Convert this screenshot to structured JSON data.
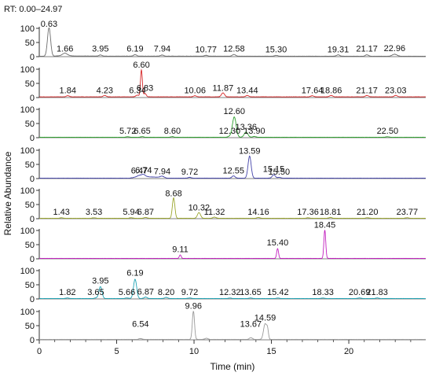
{
  "chart_data": {
    "type": "line",
    "title": "RT: 0.00–24.97",
    "xlabel": "Time (min)",
    "ylabel": "Relative Abundance",
    "xlim": [
      0,
      24.97
    ],
    "ylim": [
      0,
      100
    ],
    "x_ticks": [
      0,
      5,
      10,
      15,
      20
    ],
    "y_ticks": [
      0,
      50,
      100
    ],
    "grid": false,
    "legend": "none",
    "series": [
      {
        "color": "#6e6e6e",
        "baseline": [
          [
            0,
            1
          ],
          [
            1,
            1.5
          ],
          [
            1.6,
            4
          ],
          [
            2.2,
            2
          ],
          [
            4,
            1.5
          ],
          [
            24.97,
            1
          ]
        ],
        "peaks": [
          {
            "x": 0.63,
            "h": 100,
            "w": 0.1
          },
          {
            "x": 1.66,
            "h": 8,
            "w": 0.15
          },
          {
            "x": 3.95,
            "h": 4,
            "w": 0.1
          },
          {
            "x": 6.19,
            "h": 5,
            "w": 0.1
          },
          {
            "x": 7.94,
            "h": 4,
            "w": 0.1
          },
          {
            "x": 10.77,
            "h": 3,
            "w": 0.1
          },
          {
            "x": 12.58,
            "h": 6,
            "w": 0.1
          },
          {
            "x": 15.3,
            "h": 3,
            "w": 0.1
          },
          {
            "x": 19.31,
            "h": 5,
            "w": 0.1
          },
          {
            "x": 21.17,
            "h": 5,
            "w": 0.1
          },
          {
            "x": 22.96,
            "h": 7,
            "w": 0.15
          }
        ],
        "labels": [
          {
            "x": 0.63,
            "text": "0.63",
            "ly": 100
          },
          {
            "x": 1.66,
            "text": "1.66",
            "ly": 12
          },
          {
            "x": 3.95,
            "text": "3.95",
            "ly": 12
          },
          {
            "x": 6.19,
            "text": "6.19",
            "ly": 12
          },
          {
            "x": 7.94,
            "text": "7.94",
            "ly": 12
          },
          {
            "x": 10.77,
            "text": "10.77",
            "ly": 10
          },
          {
            "x": 12.58,
            "text": "12.58",
            "ly": 12
          },
          {
            "x": 15.3,
            "text": "15.30",
            "ly": 10
          },
          {
            "x": 19.31,
            "text": "19.31",
            "ly": 10
          },
          {
            "x": 21.17,
            "text": "21.17",
            "ly": 12
          },
          {
            "x": 22.96,
            "text": "22.96",
            "ly": 14
          }
        ]
      },
      {
        "color": "#d62728",
        "baseline": [
          [
            0,
            2
          ],
          [
            24.97,
            2
          ]
        ],
        "peaks": [
          {
            "x": 1.84,
            "h": 4,
            "w": 0.1
          },
          {
            "x": 4.23,
            "h": 5,
            "w": 0.1
          },
          {
            "x": 6.34,
            "h": 6,
            "w": 0.1
          },
          {
            "x": 6.6,
            "h": 95,
            "w": 0.06
          },
          {
            "x": 6.83,
            "h": 12,
            "w": 0.08
          },
          {
            "x": 10.06,
            "h": 4,
            "w": 0.1
          },
          {
            "x": 11.87,
            "h": 14,
            "w": 0.1
          },
          {
            "x": 13.44,
            "h": 5,
            "w": 0.1
          },
          {
            "x": 17.64,
            "h": 4,
            "w": 0.1
          },
          {
            "x": 18.86,
            "h": 5,
            "w": 0.1
          },
          {
            "x": 21.17,
            "h": 5,
            "w": 0.1
          },
          {
            "x": 23.03,
            "h": 5,
            "w": 0.1
          }
        ],
        "labels": [
          {
            "x": 1.84,
            "text": "1.84",
            "ly": 10
          },
          {
            "x": 4.23,
            "text": "4.23",
            "ly": 10
          },
          {
            "x": 6.34,
            "text": "6.34",
            "ly": 10
          },
          {
            "x": 6.6,
            "text": "6.60",
            "ly": 100
          },
          {
            "x": 6.83,
            "text": "6.83",
            "ly": 18
          },
          {
            "x": 10.06,
            "text": "10.06",
            "ly": 10
          },
          {
            "x": 11.87,
            "text": "11.87",
            "ly": 18
          },
          {
            "x": 13.44,
            "text": "13.44",
            "ly": 10
          },
          {
            "x": 17.64,
            "text": "17.64",
            "ly": 10
          },
          {
            "x": 18.86,
            "text": "18.86",
            "ly": 10
          },
          {
            "x": 21.17,
            "text": "21.17",
            "ly": 10
          },
          {
            "x": 23.03,
            "text": "23.03",
            "ly": 10
          }
        ]
      },
      {
        "color": "#2ca02c",
        "baseline": [
          [
            0,
            1
          ],
          [
            24.97,
            1
          ]
        ],
        "peaks": [
          {
            "x": 5.72,
            "h": 2,
            "w": 0.1
          },
          {
            "x": 6.65,
            "h": 2,
            "w": 0.1
          },
          {
            "x": 8.6,
            "h": 2,
            "w": 0.1
          },
          {
            "x": 12.3,
            "h": 3,
            "w": 0.1
          },
          {
            "x": 12.6,
            "h": 72,
            "w": 0.12
          },
          {
            "x": 13.36,
            "h": 18,
            "w": 0.12
          },
          {
            "x": 13.9,
            "h": 3,
            "w": 0.1
          },
          {
            "x": 22.5,
            "h": 2,
            "w": 0.1
          }
        ],
        "labels": [
          {
            "x": 5.72,
            "text": "5.72",
            "ly": 8
          },
          {
            "x": 6.65,
            "text": "6.65",
            "ly": 8
          },
          {
            "x": 8.6,
            "text": "8.60",
            "ly": 8
          },
          {
            "x": 12.3,
            "text": "12.30",
            "ly": 8
          },
          {
            "x": 12.6,
            "text": "12.60",
            "ly": 78
          },
          {
            "x": 13.36,
            "text": "13.36",
            "ly": 22
          },
          {
            "x": 13.9,
            "text": "13.90",
            "ly": 8
          },
          {
            "x": 22.5,
            "text": "22.50",
            "ly": 8
          }
        ]
      },
      {
        "color": "#4444aa",
        "baseline": [
          [
            0,
            1
          ],
          [
            5.8,
            1
          ],
          [
            6.2,
            4
          ],
          [
            7,
            6
          ],
          [
            7.8,
            4
          ],
          [
            8.3,
            1
          ],
          [
            24.97,
            1
          ]
        ],
        "peaks": [
          {
            "x": 6.47,
            "h": 6,
            "w": 0.15
          },
          {
            "x": 6.74,
            "h": 8,
            "w": 0.12
          },
          {
            "x": 7.94,
            "h": 5,
            "w": 0.12
          },
          {
            "x": 9.72,
            "h": 3,
            "w": 0.1
          },
          {
            "x": 12.55,
            "h": 8,
            "w": 0.1
          },
          {
            "x": 13.59,
            "h": 78,
            "w": 0.1
          },
          {
            "x": 15.15,
            "h": 12,
            "w": 0.1
          },
          {
            "x": 15.5,
            "h": 3,
            "w": 0.1
          }
        ],
        "labels": [
          {
            "x": 6.47,
            "text": "6.47",
            "ly": 12
          },
          {
            "x": 6.74,
            "text": "6.74",
            "ly": 14
          },
          {
            "x": 7.94,
            "text": "7.94",
            "ly": 10
          },
          {
            "x": 9.72,
            "text": "9.72",
            "ly": 8
          },
          {
            "x": 12.55,
            "text": "12.55",
            "ly": 12
          },
          {
            "x": 13.59,
            "text": "13.59",
            "ly": 82
          },
          {
            "x": 15.15,
            "text": "15.15",
            "ly": 18
          },
          {
            "x": 15.5,
            "text": "15.50",
            "ly": 8
          }
        ]
      },
      {
        "color": "#9aa52c",
        "baseline": [
          [
            0,
            1
          ],
          [
            24.97,
            1
          ]
        ],
        "peaks": [
          {
            "x": 1.43,
            "h": 2,
            "w": 0.1
          },
          {
            "x": 3.53,
            "h": 2,
            "w": 0.1
          },
          {
            "x": 5.94,
            "h": 2,
            "w": 0.1
          },
          {
            "x": 6.87,
            "h": 3,
            "w": 0.1
          },
          {
            "x": 8.68,
            "h": 72,
            "w": 0.08
          },
          {
            "x": 10.32,
            "h": 20,
            "w": 0.1
          },
          {
            "x": 11.32,
            "h": 4,
            "w": 0.1
          },
          {
            "x": 14.16,
            "h": 3,
            "w": 0.1
          },
          {
            "x": 17.36,
            "h": 2,
            "w": 0.1
          },
          {
            "x": 18.81,
            "h": 3,
            "w": 0.1
          },
          {
            "x": 21.2,
            "h": 2,
            "w": 0.1
          },
          {
            "x": 23.77,
            "h": 2,
            "w": 0.1
          }
        ],
        "labels": [
          {
            "x": 1.43,
            "text": "1.43",
            "ly": 8
          },
          {
            "x": 3.53,
            "text": "3.53",
            "ly": 8
          },
          {
            "x": 5.94,
            "text": "5.94",
            "ly": 8
          },
          {
            "x": 6.87,
            "text": "6.87",
            "ly": 8
          },
          {
            "x": 8.68,
            "text": "8.68",
            "ly": 74
          },
          {
            "x": 10.32,
            "text": "10.32",
            "ly": 24
          },
          {
            "x": 11.32,
            "text": "11.32",
            "ly": 8
          },
          {
            "x": 14.16,
            "text": "14.16",
            "ly": 8
          },
          {
            "x": 17.36,
            "text": "17.36",
            "ly": 8
          },
          {
            "x": 18.81,
            "text": "18.81",
            "ly": 8
          },
          {
            "x": 21.2,
            "text": "21.20",
            "ly": 8
          },
          {
            "x": 23.77,
            "text": "23.77",
            "ly": 8
          }
        ]
      },
      {
        "color": "#c21fbf",
        "baseline": [
          [
            0,
            1
          ],
          [
            24.97,
            1
          ]
        ],
        "peaks": [
          {
            "x": 9.11,
            "h": 12,
            "w": 0.06
          },
          {
            "x": 15.4,
            "h": 35,
            "w": 0.06
          },
          {
            "x": 18.45,
            "h": 100,
            "w": 0.06
          }
        ],
        "labels": [
          {
            "x": 9.11,
            "text": "9.11",
            "ly": 18
          },
          {
            "x": 15.4,
            "text": "15.40",
            "ly": 42
          },
          {
            "x": 18.45,
            "text": "18.45",
            "ly": 104
          }
        ]
      },
      {
        "color": "#1fa3b4",
        "baseline": [
          [
            0,
            1
          ],
          [
            24.97,
            1
          ]
        ],
        "peaks": [
          {
            "x": 1.82,
            "h": 2,
            "w": 0.1
          },
          {
            "x": 3.65,
            "h": 2,
            "w": 0.1
          },
          {
            "x": 3.95,
            "h": 42,
            "w": 0.1
          },
          {
            "x": 5.66,
            "h": 2,
            "w": 0.1
          },
          {
            "x": 6.19,
            "h": 68,
            "w": 0.1
          },
          {
            "x": 6.87,
            "h": 5,
            "w": 0.1
          },
          {
            "x": 8.2,
            "h": 4,
            "w": 0.1
          },
          {
            "x": 9.72,
            "h": 2,
            "w": 0.1
          },
          {
            "x": 12.32,
            "h": 2,
            "w": 0.1
          },
          {
            "x": 13.65,
            "h": 2,
            "w": 0.1
          },
          {
            "x": 15.42,
            "h": 2,
            "w": 0.1
          },
          {
            "x": 18.33,
            "h": 2,
            "w": 0.1
          },
          {
            "x": 20.69,
            "h": 2,
            "w": 0.1
          },
          {
            "x": 21.83,
            "h": 2,
            "w": 0.1
          }
        ],
        "labels": [
          {
            "x": 1.82,
            "text": "1.82",
            "ly": 8
          },
          {
            "x": 3.65,
            "text": "3.65",
            "ly": 8
          },
          {
            "x": 3.95,
            "text": "3.95",
            "ly": 48
          },
          {
            "x": 5.66,
            "text": "5.66",
            "ly": 8
          },
          {
            "x": 6.19,
            "text": "6.19",
            "ly": 76
          },
          {
            "x": 6.87,
            "text": "6.87",
            "ly": 10
          },
          {
            "x": 8.2,
            "text": "8.20",
            "ly": 8
          },
          {
            "x": 9.72,
            "text": "9.72",
            "ly": 8
          },
          {
            "x": 12.32,
            "text": "12.32",
            "ly": 8
          },
          {
            "x": 13.65,
            "text": "13.65",
            "ly": 8
          },
          {
            "x": 15.42,
            "text": "15.42",
            "ly": 8
          },
          {
            "x": 18.33,
            "text": "18.33",
            "ly": 8
          },
          {
            "x": 20.69,
            "text": "20.69",
            "ly": 8
          },
          {
            "x": 21.83,
            "text": "21.83",
            "ly": 8
          }
        ]
      },
      {
        "color": "#9a9a9a",
        "baseline": [
          [
            0,
            1
          ],
          [
            24.97,
            1
          ]
        ],
        "peaks": [
          {
            "x": 6.54,
            "h": 3,
            "w": 0.1
          },
          {
            "x": 9.96,
            "h": 100,
            "w": 0.07
          },
          {
            "x": 10.8,
            "h": 4,
            "w": 0.1
          },
          {
            "x": 13.67,
            "h": 6,
            "w": 0.1
          },
          {
            "x": 14.59,
            "h": 55,
            "w": 0.1
          },
          {
            "x": 14.75,
            "h": 30,
            "w": 0.06
          }
        ],
        "labels": [
          {
            "x": 6.54,
            "text": "6.54",
            "ly": 40
          },
          {
            "x": 9.96,
            "text": "9.96",
            "ly": 104
          },
          {
            "x": 13.67,
            "text": "13.67",
            "ly": 40
          },
          {
            "x": 14.59,
            "text": "14.59",
            "ly": 62
          }
        ]
      }
    ]
  }
}
